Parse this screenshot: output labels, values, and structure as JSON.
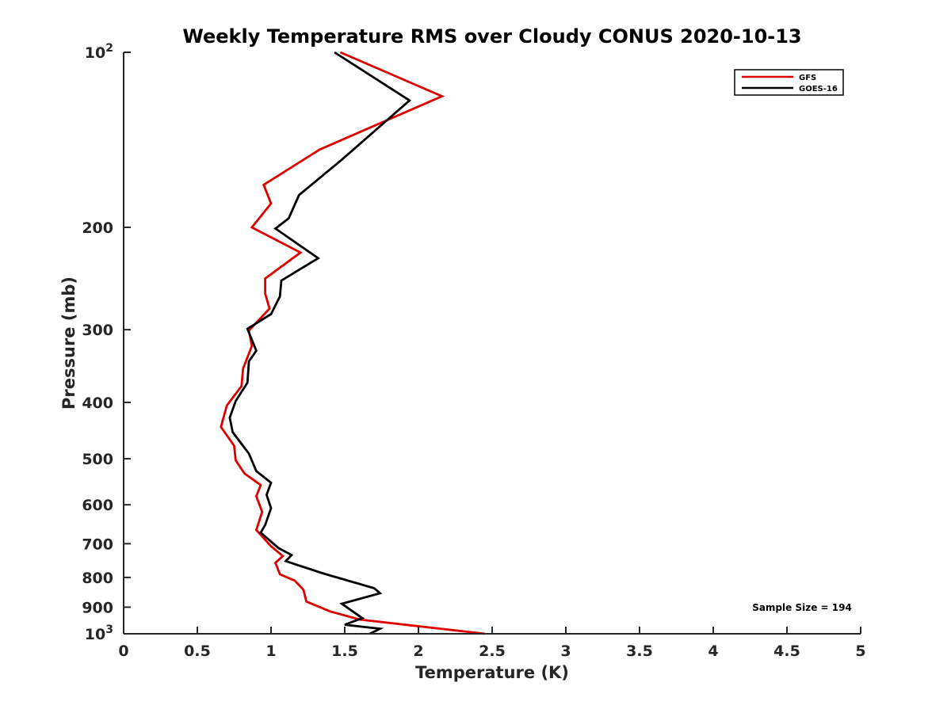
{
  "chart_data": {
    "type": "line",
    "title": "Weekly Temperature RMS over Cloudy CONUS 2020-10-13",
    "xlabel": "Temperature (K)",
    "ylabel": "Pressure (mb)",
    "xlim": [
      0,
      5
    ],
    "ylim": [
      100,
      1000
    ],
    "y_scale": "log",
    "y_reversed": true,
    "grid": false,
    "legend_position": "top-right",
    "x_ticks": [
      0,
      0.5,
      1,
      1.5,
      2,
      2.5,
      3,
      3.5,
      4,
      4.5,
      5
    ],
    "x_tick_labels": [
      "0",
      "0.5",
      "1",
      "1.5",
      "2",
      "2.5",
      "3",
      "3.5",
      "4",
      "4.5",
      "5"
    ],
    "y_ticks": [
      {
        "value": 100,
        "label": "10",
        "exp": "2"
      },
      {
        "value": 200,
        "label": "200",
        "exp": ""
      },
      {
        "value": 300,
        "label": "300",
        "exp": ""
      },
      {
        "value": 400,
        "label": "400",
        "exp": ""
      },
      {
        "value": 500,
        "label": "500",
        "exp": ""
      },
      {
        "value": 600,
        "label": "600",
        "exp": ""
      },
      {
        "value": 700,
        "label": "700",
        "exp": ""
      },
      {
        "value": 800,
        "label": "800",
        "exp": ""
      },
      {
        "value": 900,
        "label": "900",
        "exp": ""
      },
      {
        "value": 1000,
        "label": "10",
        "exp": "3"
      }
    ],
    "annotation": "Sample Size = 194",
    "series": [
      {
        "name": "GFS",
        "color": "#dd0000",
        "points": [
          [
            1.47,
            100
          ],
          [
            2.16,
            119
          ],
          [
            1.33,
            147
          ],
          [
            0.95,
            169
          ],
          [
            1.0,
            182
          ],
          [
            0.87,
            200
          ],
          [
            1.2,
            221
          ],
          [
            0.96,
            245
          ],
          [
            0.96,
            260
          ],
          [
            0.99,
            276
          ],
          [
            0.85,
            301
          ],
          [
            0.87,
            320
          ],
          [
            0.81,
            350
          ],
          [
            0.8,
            375
          ],
          [
            0.7,
            405
          ],
          [
            0.66,
            441
          ],
          [
            0.75,
            475
          ],
          [
            0.76,
            503
          ],
          [
            0.82,
            530
          ],
          [
            0.93,
            555
          ],
          [
            0.9,
            580
          ],
          [
            0.94,
            617
          ],
          [
            0.9,
            663
          ],
          [
            1.0,
            707
          ],
          [
            1.08,
            735
          ],
          [
            1.03,
            755
          ],
          [
            1.06,
            790
          ],
          [
            1.16,
            810
          ],
          [
            1.22,
            840
          ],
          [
            1.24,
            880
          ],
          [
            1.4,
            915
          ],
          [
            1.6,
            945
          ],
          [
            2.45,
            1000
          ]
        ]
      },
      {
        "name": "GOES-16",
        "color": "#000000",
        "points": [
          [
            1.43,
            100
          ],
          [
            1.94,
            121
          ],
          [
            1.48,
            153
          ],
          [
            1.19,
            176
          ],
          [
            1.12,
            193
          ],
          [
            1.03,
            201
          ],
          [
            1.32,
            226
          ],
          [
            1.07,
            247
          ],
          [
            1.06,
            263
          ],
          [
            1.0,
            282
          ],
          [
            0.84,
            299
          ],
          [
            0.9,
            326
          ],
          [
            0.85,
            340
          ],
          [
            0.84,
            370
          ],
          [
            0.76,
            398
          ],
          [
            0.72,
            425
          ],
          [
            0.74,
            450
          ],
          [
            0.85,
            490
          ],
          [
            0.9,
            525
          ],
          [
            1.0,
            550
          ],
          [
            0.97,
            577
          ],
          [
            1.0,
            608
          ],
          [
            0.96,
            650
          ],
          [
            0.93,
            670
          ],
          [
            1.05,
            712
          ],
          [
            1.14,
            732
          ],
          [
            1.1,
            750
          ],
          [
            1.35,
            787
          ],
          [
            1.7,
            835
          ],
          [
            1.74,
            852
          ],
          [
            1.48,
            888
          ],
          [
            1.62,
            940
          ],
          [
            1.5,
            965
          ],
          [
            1.74,
            980
          ],
          [
            1.67,
            1000
          ]
        ]
      }
    ]
  }
}
